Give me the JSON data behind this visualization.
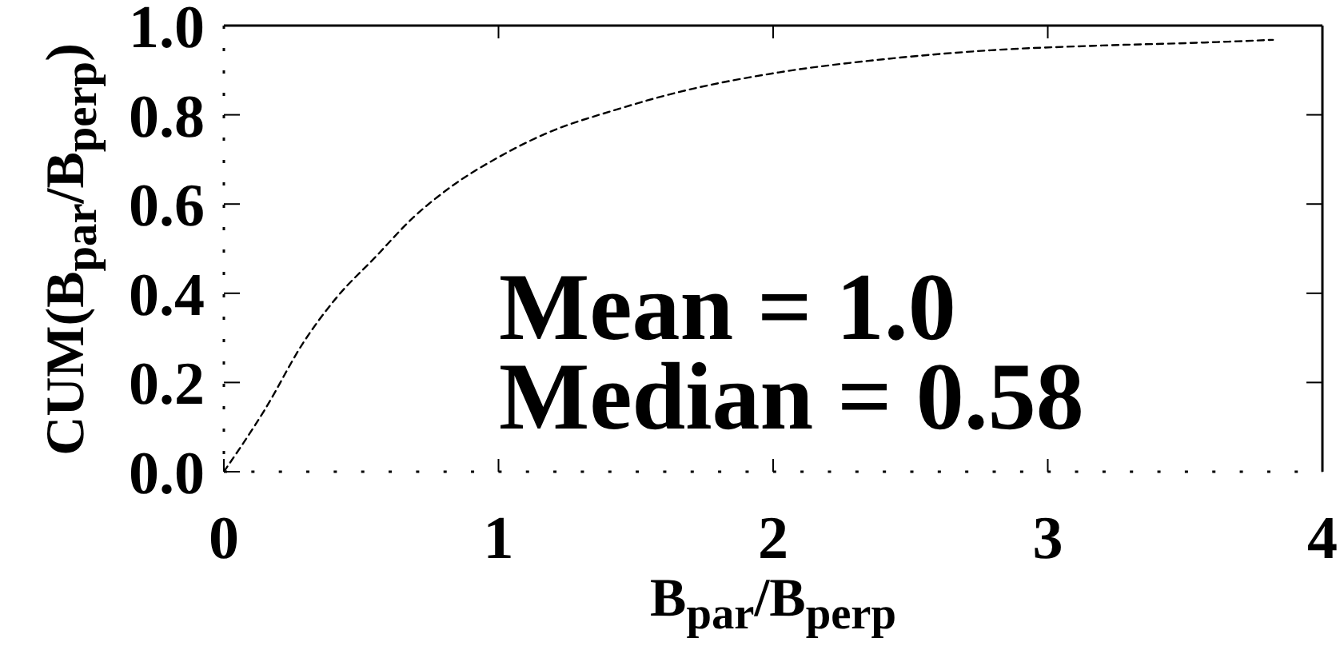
{
  "chart_data": {
    "type": "line",
    "xlabel": "B$_{par}$/B$_{perp}$",
    "ylabel": "CUM(B$_{par}$/B$_{perp}$)",
    "x": [
      0,
      0.15,
      0.29,
      0.41,
      0.55,
      0.69,
      0.83,
      1.0,
      1.18,
      1.42,
      1.65,
      2.02,
      2.41,
      2.8,
      3.18,
      3.57,
      3.82
    ],
    "series": [
      {
        "color": "#000000",
        "values": [
          0,
          0.14,
          0.29,
          0.39,
          0.48,
          0.57,
          0.64,
          0.705,
          0.76,
          0.81,
          0.85,
          0.895,
          0.925,
          0.945,
          0.955,
          0.962,
          0.968
        ]
      }
    ],
    "xlim": [
      0,
      4
    ],
    "xticks": [
      0,
      1,
      2,
      3,
      4
    ],
    "ylim": [
      0,
      1
    ],
    "yticks": [
      {
        "value": 0,
        "label": "0.0"
      },
      0.2,
      0.4,
      0.6,
      0.8,
      {
        "value": 1,
        "label": "1.0"
      }
    ],
    "line_style": "dashed",
    "annotations": [
      "Mean = 1.0",
      "Median = 0.58"
    ]
  }
}
